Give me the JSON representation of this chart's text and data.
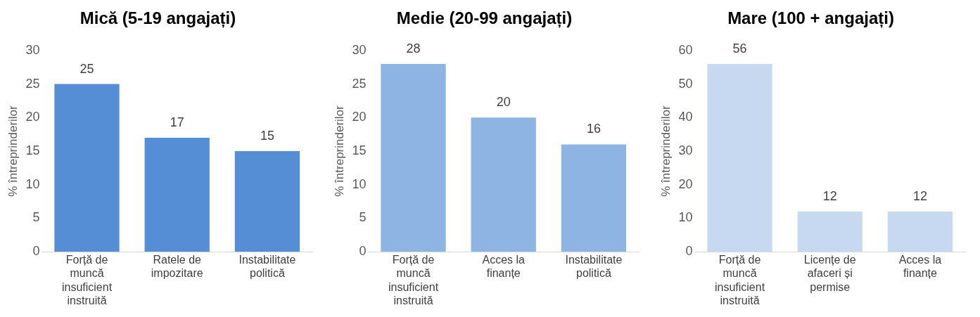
{
  "chart_data": [
    {
      "type": "bar",
      "title": "Mică (5-19 angajați)",
      "ylabel": "% întreprinderilor",
      "categories": [
        "Forță de muncă insuficient instruită",
        "Ratele de impozitare",
        "Instabilitate politică"
      ],
      "values": [
        25,
        17,
        15
      ],
      "color": "#558ed5",
      "ylim": [
        0,
        30
      ],
      "yticks": [
        0,
        5,
        10,
        15,
        20,
        25,
        30
      ],
      "grid": false,
      "legend": false,
      "data_labels": true
    },
    {
      "type": "bar",
      "title": "Medie (20-99 angajați)",
      "ylabel": "% întreprinderilor",
      "categories": [
        "Forță de muncă insuficient instruită",
        "Acces la finanțe",
        "Instabilitate politică"
      ],
      "values": [
        28,
        20,
        16
      ],
      "color": "#8eb4e3",
      "ylim": [
        0,
        30
      ],
      "yticks": [
        0,
        5,
        10,
        15,
        20,
        25,
        30
      ],
      "grid": false,
      "legend": false,
      "data_labels": true
    },
    {
      "type": "bar",
      "title": "Mare (100 + angajați)",
      "ylabel": "% întreprinderilor",
      "categories": [
        "Forță de muncă insuficient instruită",
        "Licențe de afaceri și permise",
        "Acces la finanțe"
      ],
      "values": [
        56,
        12,
        12
      ],
      "color": "#c6d9f1",
      "ylim": [
        0,
        60
      ],
      "yticks": [
        0,
        10,
        20,
        30,
        40,
        50,
        60
      ],
      "grid": false,
      "legend": false,
      "data_labels": true
    }
  ]
}
